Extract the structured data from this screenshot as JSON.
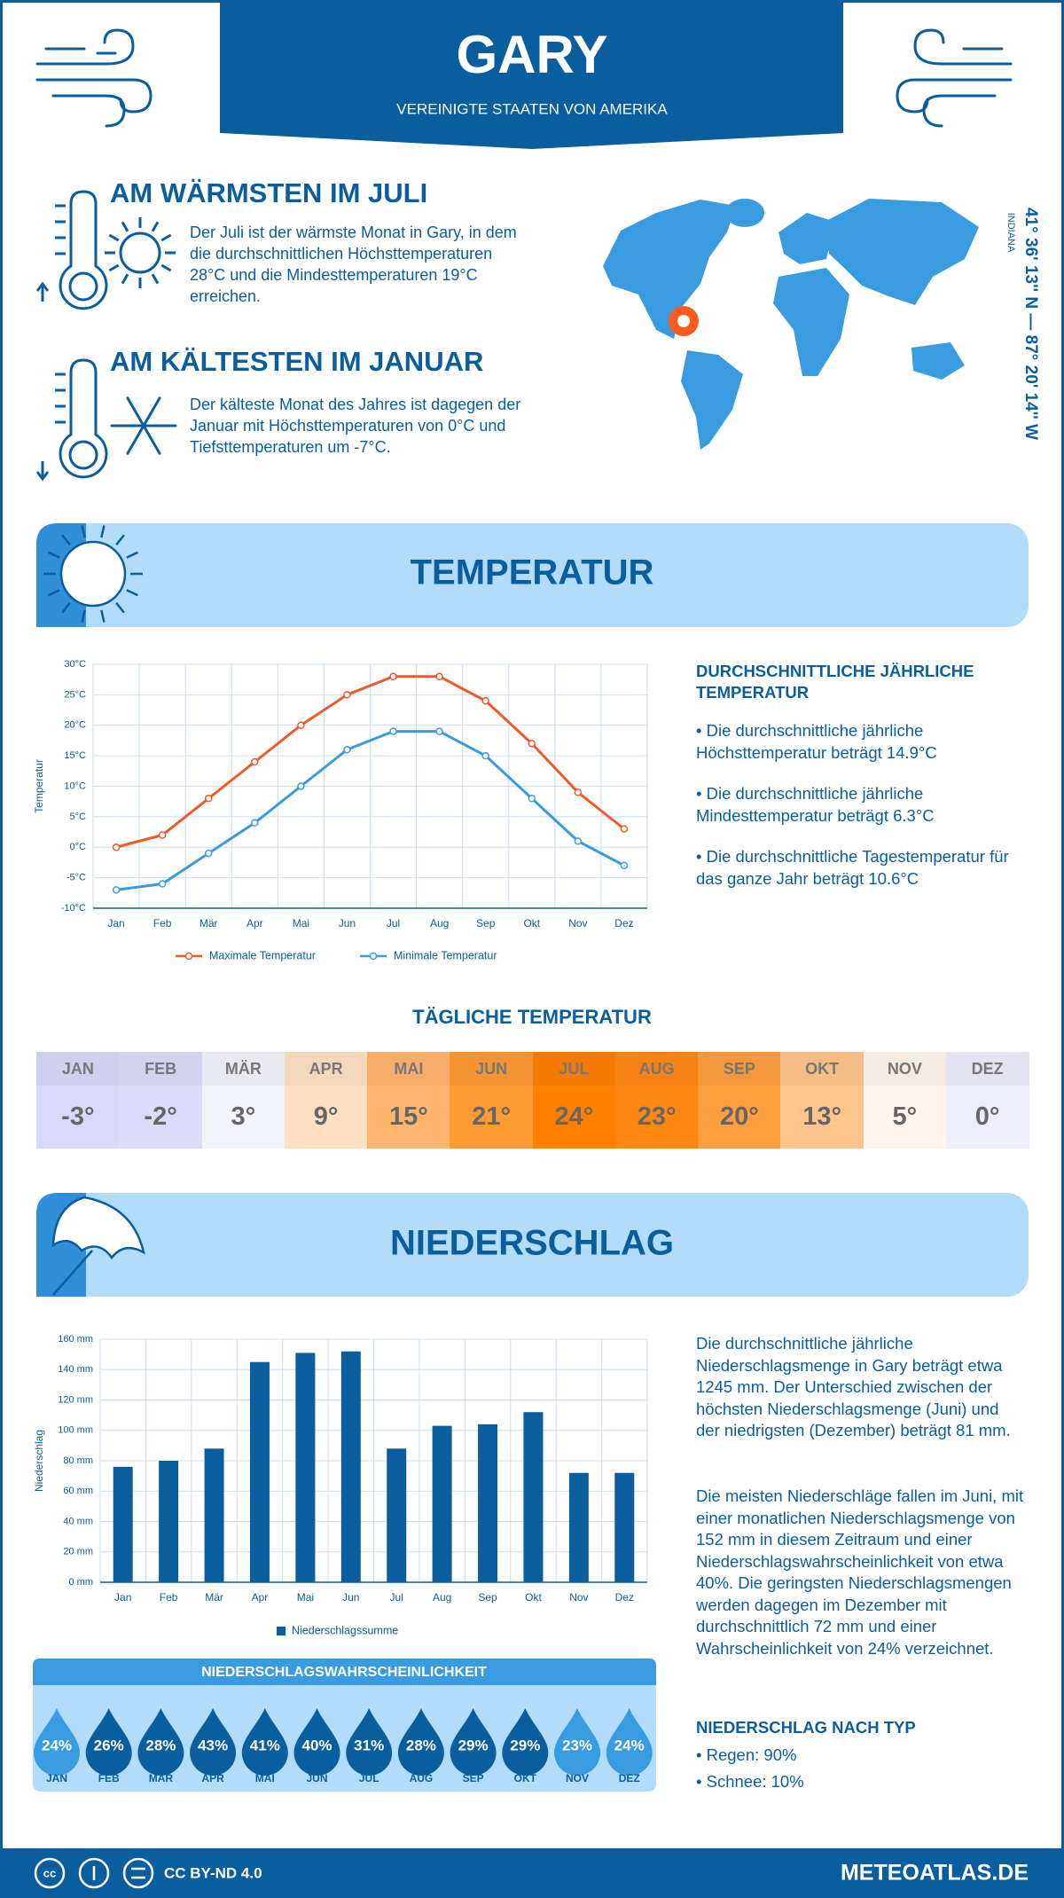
{
  "header": {
    "title": "GARY",
    "subtitle": "VEREINIGTE STAATEN VON AMERIKA"
  },
  "warmest": {
    "heading": "AM WÄRMSTEN IM JULI",
    "text": "Der Juli ist der wärmste Monat in Gary, in dem die durchschnittlichen Höchsttemperaturen 28°C und die Mindesttemperaturen 19°C erreichen."
  },
  "coldest": {
    "heading": "AM KÄLTESTEN IM JANUAR",
    "text": "Der kälteste Monat des Jahres ist dagegen der Januar mit Höchsttemperaturen von 0°C und Tiefsttemperaturen um -7°C."
  },
  "location": {
    "coordinates": "41° 36' 13'' N — 87° 20' 14'' W",
    "region": "INDIANA"
  },
  "temperature_section": {
    "title": "TEMPERATUR",
    "summary_heading": "DURCHSCHNITTLICHE JÄHRLICHE TEMPERATUR",
    "bullets": [
      "• Die durchschnittliche jährliche Höchsttemperatur beträgt 14.9°C",
      "• Die durchschnittliche jährliche Mindesttemperatur beträgt 6.3°C",
      "• Die durchschnittliche Tagestemperatur für das ganze Jahr beträgt 10.6°C"
    ]
  },
  "chart_data": [
    {
      "type": "line",
      "y_label": "Temperatur",
      "categories": [
        "Jan",
        "Feb",
        "Mär",
        "Apr",
        "Mai",
        "Jun",
        "Jul",
        "Aug",
        "Sep",
        "Okt",
        "Nov",
        "Dez"
      ],
      "series": [
        {
          "name": "Maximale Temperatur",
          "color": "#f05a28",
          "values": [
            0,
            2,
            8,
            14,
            20,
            25,
            28,
            28,
            24,
            17,
            9,
            3
          ]
        },
        {
          "name": "Minimale Temperatur",
          "color": "#3a9ce0",
          "values": [
            -7,
            -6,
            -1,
            4,
            10,
            16,
            19,
            19,
            15,
            8,
            1,
            -3
          ]
        }
      ],
      "ylim": [
        -10,
        30
      ],
      "yticks": [
        {
          "value": -10,
          "label": "-10°C"
        },
        {
          "value": -5,
          "label": "-5°C"
        },
        {
          "value": 0,
          "label": "0°C"
        },
        {
          "value": 5,
          "label": "5°C"
        },
        {
          "value": 10,
          "label": "10°C"
        },
        {
          "value": 15,
          "label": "15°C"
        },
        {
          "value": 20,
          "label": "20°C"
        },
        {
          "value": 25,
          "label": "25°C"
        },
        {
          "value": 30,
          "label": "30°C"
        }
      ],
      "grid": true
    },
    {
      "type": "bar",
      "y_label": "Niederschlag",
      "categories": [
        "Jan",
        "Feb",
        "Mär",
        "Apr",
        "Mai",
        "Jun",
        "Jul",
        "Aug",
        "Sep",
        "Okt",
        "Nov",
        "Dez"
      ],
      "series": [
        {
          "name": "Niederschlagssumme",
          "color": "#0b5e9e",
          "values": [
            76,
            80,
            88,
            145,
            151,
            152,
            88,
            103,
            104,
            112,
            72,
            72
          ]
        }
      ],
      "ylim": [
        0,
        160
      ],
      "yticks": [
        {
          "value": 0,
          "label": "0 mm"
        },
        {
          "value": 20,
          "label": "20 mm"
        },
        {
          "value": 40,
          "label": "40 mm"
        },
        {
          "value": 60,
          "label": "60 mm"
        },
        {
          "value": 80,
          "label": "80 mm"
        },
        {
          "value": 100,
          "label": "100 mm"
        },
        {
          "value": 120,
          "label": "120 mm"
        },
        {
          "value": 140,
          "label": "140 mm"
        },
        {
          "value": 160,
          "label": "160 mm"
        }
      ],
      "grid": true
    }
  ],
  "daily_temperature": {
    "title": "TÄGLICHE TEMPERATUR",
    "months": [
      "JAN",
      "FEB",
      "MÄR",
      "APR",
      "MAI",
      "JUN",
      "JUL",
      "AUG",
      "SEP",
      "OKT",
      "NOV",
      "DEZ"
    ],
    "values": [
      "-3°",
      "-2°",
      "3°",
      "9°",
      "15°",
      "21°",
      "24°",
      "23°",
      "20°",
      "13°",
      "5°",
      "0°"
    ],
    "colors": [
      "#d8d8fa",
      "#dcdcfa",
      "#f3f3fb",
      "#ffe0c4",
      "#ffb56e",
      "#ff9b35",
      "#ff8000",
      "#ff8812",
      "#ff9e3e",
      "#ffc58c",
      "#fff5ec",
      "#ededfb"
    ]
  },
  "precipitation_section": {
    "title": "NIEDERSCHLAG",
    "paragraphs": [
      "Die durchschnittliche jährliche Niederschlagsmenge in Gary beträgt etwa 1245 mm. Der Unterschied zwischen der höchsten Niederschlagsmenge (Juni) und der niedrigsten (Dezember) beträgt 81 mm.",
      "Die meisten Niederschläge fallen im Juni, mit einer monatlichen Niederschlagsmenge von 152 mm in diesem Zeitraum und einer Niederschlagswahrscheinlichkeit von etwa 40%. Die geringsten Niederschlagsmengen werden dagegen im Dezember mit durchschnittlich 72 mm und einer Wahrscheinlichkeit von 24% verzeichnet."
    ],
    "type_heading": "NIEDERSCHLAG NACH TYP",
    "type_items": [
      "• Regen: 90%",
      "• Schnee: 10%"
    ]
  },
  "probability": {
    "title": "NIEDERSCHLAGSWAHRSCHEINLICHKEIT",
    "months": [
      "JAN",
      "FEB",
      "MÄR",
      "APR",
      "MAI",
      "JUN",
      "JUL",
      "AUG",
      "SEP",
      "OKT",
      "NOV",
      "DEZ"
    ],
    "values": [
      "24%",
      "26%",
      "28%",
      "43%",
      "41%",
      "40%",
      "31%",
      "28%",
      "29%",
      "29%",
      "23%",
      "24%"
    ],
    "colors": [
      "#3a9ce0",
      "#0b5e9e",
      "#0b5e9e",
      "#0b5e9e",
      "#0b5e9e",
      "#0b5e9e",
      "#0b5e9e",
      "#0b5e9e",
      "#0b5e9e",
      "#0b5e9e",
      "#3a9ce0",
      "#3a9ce0"
    ]
  },
  "footer": {
    "license": "CC BY-ND 4.0",
    "site": "METEOATLAS.DE"
  }
}
